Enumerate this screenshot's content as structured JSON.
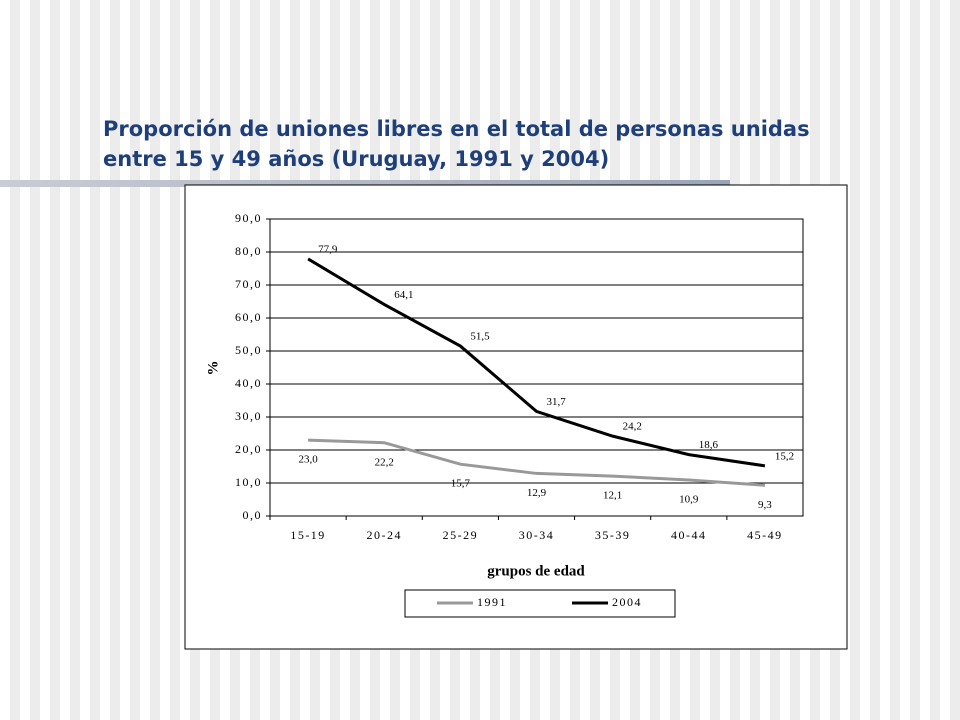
{
  "chart_data": {
    "type": "line",
    "title": [
      "Proporción de uniones libres en el total de personas unidas",
      "entre 15 y 49 años (Uruguay, 1991 y 2004)"
    ],
    "y_label": "%",
    "x_label": "grupos de edad",
    "categories": [
      "15-19",
      "20-24",
      "25-29",
      "30-34",
      "35-39",
      "40-44",
      "45-49"
    ],
    "series": [
      {
        "name": "1991",
        "color": "#999999",
        "values": [
          23.0,
          22.2,
          15.7,
          12.9,
          12.1,
          10.9,
          9.3
        ],
        "value_labels": [
          "23,0",
          "22,2",
          "15,7",
          "12,9",
          "12,1",
          "10,9",
          "9,3"
        ]
      },
      {
        "name": "2004",
        "color": "#000000",
        "values": [
          77.9,
          64.1,
          51.5,
          31.7,
          24.2,
          18.6,
          15.2
        ],
        "value_labels": [
          "77,9",
          "64,1",
          "51,5",
          "31,7",
          "24,2",
          "18,6",
          "15,2"
        ]
      }
    ],
    "ylim": [
      0,
      90
    ],
    "yticks": [
      {
        "value": 0,
        "label": "0,0"
      },
      {
        "value": 10,
        "label": "10,0"
      },
      {
        "value": 20,
        "label": "20,0"
      },
      {
        "value": 30,
        "label": "30,0"
      },
      {
        "value": 40,
        "label": "40,0"
      },
      {
        "value": 50,
        "label": "50,0"
      },
      {
        "value": 60,
        "label": "60,0"
      },
      {
        "value": 70,
        "label": "70,0"
      },
      {
        "value": 80,
        "label": "80,0"
      },
      {
        "value": 90,
        "label": "90,0"
      }
    ],
    "grid": true,
    "legend": "bottom"
  }
}
